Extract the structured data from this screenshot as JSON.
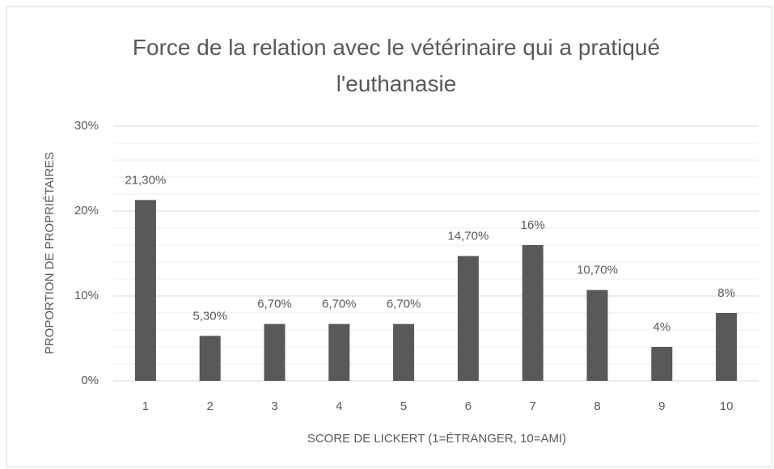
{
  "chart_data": {
    "type": "bar",
    "title": "Force de la relation avec le vétérinaire qui a pratiqué l'euthanasie",
    "x_label": "SCORE DE LICKERT (1=ÉTRANGER, 10=AMI)",
    "y_label": "PROPORTION DE PROPRIÉTAIRES",
    "categories": [
      "1",
      "2",
      "3",
      "4",
      "5",
      "6",
      "7",
      "8",
      "9",
      "10"
    ],
    "values": [
      21.3,
      5.3,
      6.7,
      6.7,
      6.7,
      14.7,
      16,
      10.7,
      4,
      8
    ],
    "value_labels": [
      "21,30%",
      "5,30%",
      "6,70%",
      "6,70%",
      "6,70%",
      "14,70%",
      "16%",
      "10,70%",
      "4%",
      "8%"
    ],
    "color": "#595959",
    "ylim": [
      0,
      30
    ],
    "yticks": [
      {
        "value": 0,
        "label": "0%"
      },
      {
        "value": 10,
        "label": "10%"
      },
      {
        "value": 20,
        "label": "20%"
      },
      {
        "value": 30,
        "label": "30%"
      }
    ],
    "minor_yticks": [
      2,
      4,
      6,
      8,
      12,
      14,
      16,
      18,
      22,
      24,
      26,
      28
    ],
    "grid": true
  }
}
